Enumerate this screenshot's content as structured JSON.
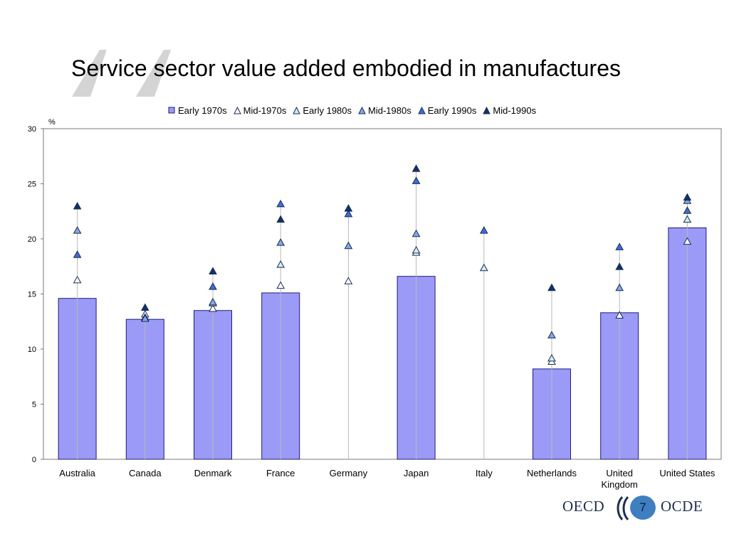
{
  "slide": {
    "title": "Service sector value added embodied in manufactures",
    "page_number": "7"
  },
  "logo": {
    "left_text": "OECD",
    "right_text": "OCDE"
  },
  "colors": {
    "bar_fill": "#9b9bf7",
    "bar_stroke": "#1c1c7a",
    "Mid-1970s": "#ffffff",
    "Early 1980s": "#cdeeee",
    "Mid-1980s": "#7fa8e8",
    "Early 1990s": "#3a6fd8",
    "Mid-1990s": "#0c3566",
    "quote_mark": "#d4d4d4",
    "logo_circle": "#3f7fc1"
  },
  "chart_data": {
    "type": "bar",
    "unit_label": "%",
    "ylim": [
      0,
      30
    ],
    "yticks": [
      0,
      5,
      10,
      15,
      20,
      25,
      30
    ],
    "grid": false,
    "legend_position": "top",
    "categories": [
      "Australia",
      "Canada",
      "Denmark",
      "France",
      "Germany",
      "Japan",
      "Italy",
      "Netherlands",
      "United Kingdom",
      "United States"
    ],
    "category_label_lines": [
      [
        "Australia"
      ],
      [
        "Canada"
      ],
      [
        "Denmark"
      ],
      [
        "France"
      ],
      [
        "Germany"
      ],
      [
        "Japan"
      ],
      [
        "Italy"
      ],
      [
        "Netherlands"
      ],
      [
        "United",
        "Kingdom"
      ],
      [
        "United States"
      ]
    ],
    "series": [
      {
        "name": "Early 1970s",
        "kind": "bar",
        "values": [
          14.6,
          12.7,
          13.5,
          15.1,
          null,
          16.6,
          null,
          8.2,
          13.3,
          21.0
        ]
      },
      {
        "name": "Mid-1970s",
        "kind": "marker",
        "values": [
          16.3,
          13.2,
          13.7,
          15.8,
          16.2,
          18.8,
          null,
          8.9,
          13.1,
          19.8
        ]
      },
      {
        "name": "Early 1980s",
        "kind": "marker",
        "values": [
          null,
          12.9,
          14.2,
          17.7,
          null,
          19.0,
          17.4,
          9.2,
          null,
          21.8
        ]
      },
      {
        "name": "Mid-1980s",
        "kind": "marker",
        "values": [
          20.8,
          12.8,
          14.3,
          19.7,
          19.4,
          20.5,
          null,
          11.3,
          15.6,
          23.5
        ]
      },
      {
        "name": "Early 1990s",
        "kind": "marker",
        "values": [
          18.6,
          null,
          15.7,
          23.2,
          22.3,
          25.3,
          20.8,
          null,
          19.3,
          22.6
        ]
      },
      {
        "name": "Mid-1990s",
        "kind": "marker",
        "values": [
          23.0,
          13.8,
          17.1,
          21.8,
          22.8,
          26.4,
          null,
          15.6,
          17.5,
          23.8
        ]
      }
    ]
  }
}
